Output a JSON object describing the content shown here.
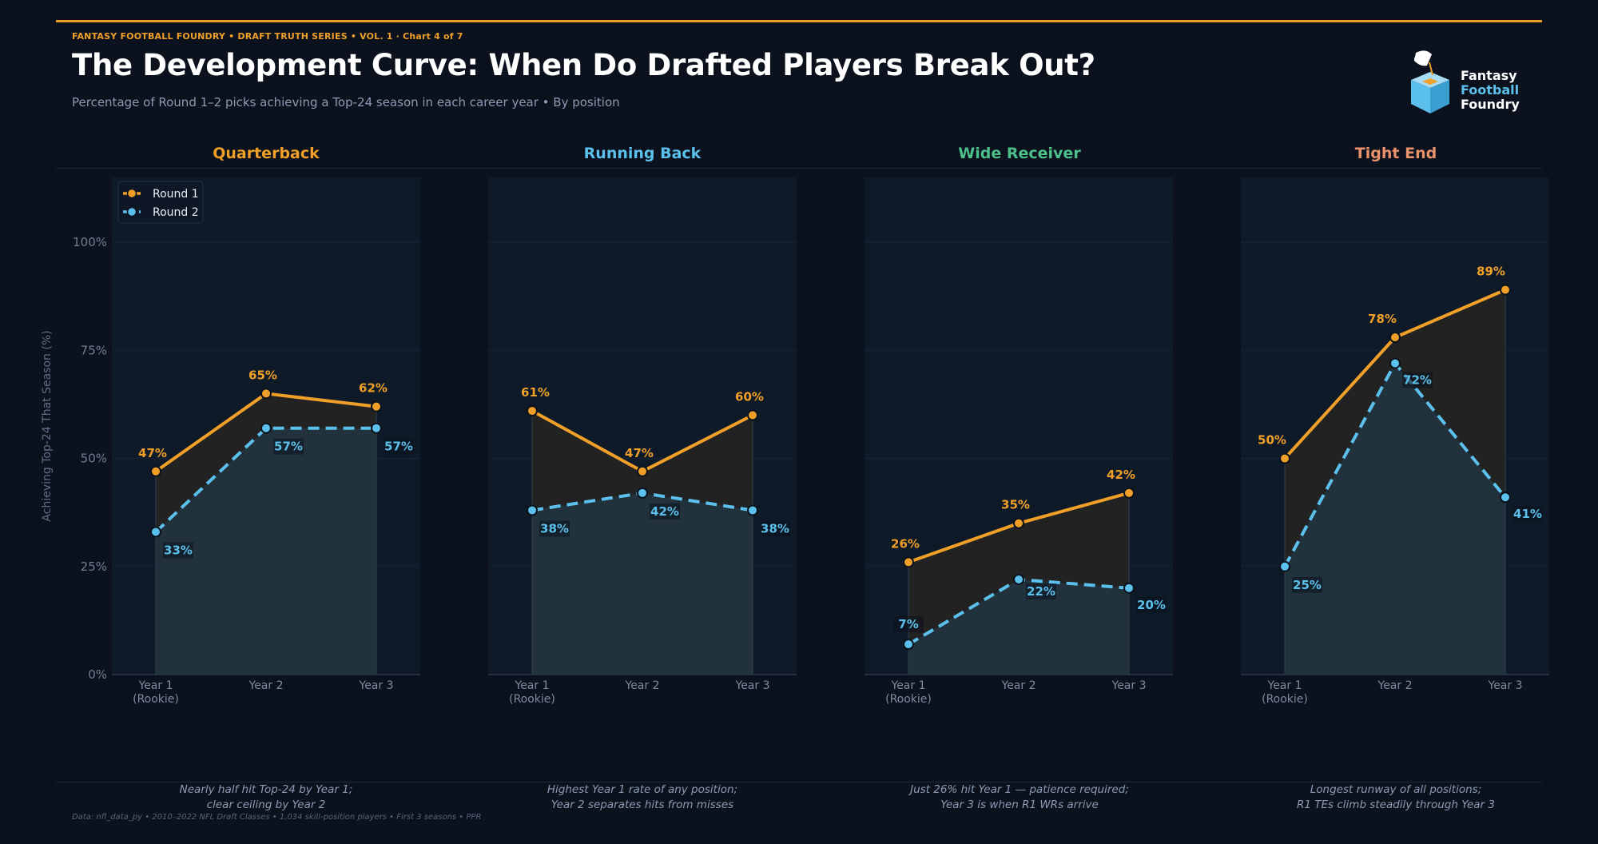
{
  "header": {
    "eyebrow": "FANTASY FOOTBALL FOUNDRY  •  DRAFT TRUTH SERIES  •  VOL. 1  ·  Chart 4 of 7",
    "title": "The Development Curve: When Do Drafted Players Break Out?",
    "subtitle": "Percentage of Round 1–2 picks achieving a Top-24 season in each career year  •  By position"
  },
  "logo": {
    "line1": "Fantasy",
    "line2": "Football",
    "line3": "Foundry"
  },
  "colors": {
    "round1": "#f0a028",
    "round2": "#5bc0eb",
    "qb": "#f0a028",
    "rb": "#5bc0eb",
    "wr": "#4cbf8a",
    "te": "#e8916a"
  },
  "chart_data": {
    "type": "line",
    "ylabel": "Achieving Top-24 That Season (%)",
    "ylim": [
      0,
      115
    ],
    "yticks": [
      0,
      25,
      50,
      75,
      100
    ],
    "ytick_labels": [
      "0%",
      "25%",
      "50%",
      "75%",
      "100%"
    ],
    "categories": [
      "Year 1\n(Rookie)",
      "Year 2",
      "Year 3"
    ],
    "legend": {
      "placement": "top-left",
      "entries": [
        "Round 1",
        "Round 2"
      ]
    },
    "panels": [
      {
        "name": "Quarterback",
        "color_key": "qb",
        "series": [
          {
            "name": "Round 1",
            "values": [
              47,
              65,
              62
            ]
          },
          {
            "name": "Round 2",
            "values": [
              33,
              57,
              57
            ]
          }
        ],
        "note": [
          "Nearly half hit Top-24 by Year 1;",
          "clear ceiling by Year 2"
        ]
      },
      {
        "name": "Running Back",
        "color_key": "rb",
        "series": [
          {
            "name": "Round 1",
            "values": [
              61,
              47,
              60
            ]
          },
          {
            "name": "Round 2",
            "values": [
              38,
              42,
              38
            ]
          }
        ],
        "note": [
          "Highest Year 1 rate of any position;",
          "Year 2 separates hits from misses"
        ]
      },
      {
        "name": "Wide Receiver",
        "color_key": "wr",
        "series": [
          {
            "name": "Round 1",
            "values": [
              26,
              35,
              42
            ]
          },
          {
            "name": "Round 2",
            "values": [
              7,
              22,
              20
            ]
          }
        ],
        "note": [
          "Just 26% hit Year 1 — patience required;",
          "Year 3 is when R1 WRs arrive"
        ]
      },
      {
        "name": "Tight End",
        "color_key": "te",
        "series": [
          {
            "name": "Round 1",
            "values": [
              50,
              78,
              89
            ]
          },
          {
            "name": "Round 2",
            "values": [
              25,
              72,
              41
            ]
          }
        ],
        "note": [
          "Longest runway of all positions;",
          "R1 TEs climb steadily through Year 3"
        ]
      }
    ]
  },
  "source": "Data: nfl_data_py  •  2010–2022 NFL Draft Classes  •  1,034 skill-position players  •  First 3 seasons  •  PPR"
}
